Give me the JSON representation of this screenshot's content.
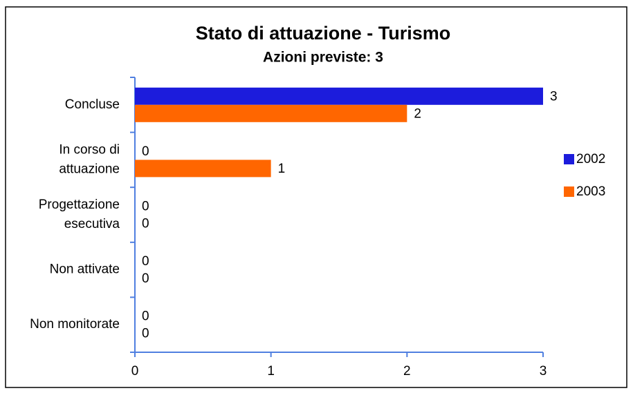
{
  "chart_data": {
    "type": "bar",
    "orientation": "horizontal",
    "title": "Stato di attuazione - Turismo",
    "subtitle": "Azioni previste: 3",
    "categories": [
      "Concluse",
      "In corso di attuazione",
      "Progettazione esecutiva",
      "Non attivate",
      "Non monitorate"
    ],
    "series": [
      {
        "name": "2002",
        "color": "#1c1cdc",
        "values": [
          3,
          0,
          0,
          0,
          0
        ]
      },
      {
        "name": "2003",
        "color": "#ff6600",
        "values": [
          2,
          1,
          0,
          0,
          0
        ]
      }
    ],
    "xlim": [
      0,
      3
    ],
    "xticks": [
      0,
      1,
      2,
      3
    ],
    "legend": "right"
  }
}
